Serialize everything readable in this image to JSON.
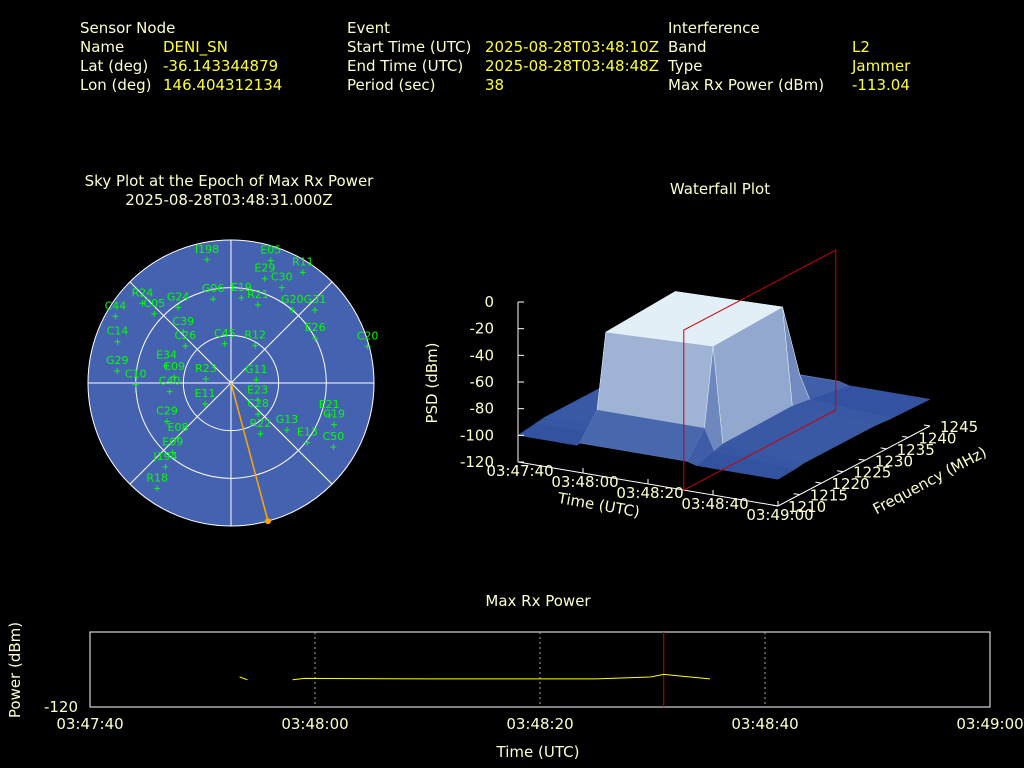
{
  "header": {
    "sensor": {
      "title": "Sensor Node",
      "rows": [
        [
          "Name",
          "DENI_SN"
        ],
        [
          "Lat (deg)",
          "-36.143344879"
        ],
        [
          "Lon (deg)",
          "146.404312134"
        ]
      ]
    },
    "event": {
      "title": "Event",
      "rows": [
        [
          "Start Time (UTC)",
          "2025-08-28T03:48:10Z"
        ],
        [
          "End Time (UTC)",
          "2025-08-28T03:48:48Z"
        ],
        [
          "Period (sec)",
          "38"
        ]
      ]
    },
    "interference": {
      "title": "Interference",
      "rows": [
        [
          "Band",
          "L2"
        ],
        [
          "Type",
          "Jammer"
        ],
        [
          "Max Rx Power (dBm)",
          "-113.04"
        ]
      ]
    }
  },
  "chart_data": [
    {
      "type": "polar",
      "title": "Sky Plot at the Epoch of Max Rx Power",
      "subtitle": "2025-08-28T03:48:31.000Z",
      "elevation_lim": [
        0,
        90
      ],
      "elevation_rings": [
        30,
        60
      ],
      "azimuth_spokes": [
        0,
        45,
        90,
        135,
        180,
        225,
        270,
        315
      ],
      "disk_color": "#4462b0",
      "color": "#00ff00",
      "jammer_azimuth": 165,
      "jammer_color": "#ffa500",
      "satellites": {
        "names": [
          "I198",
          "E05",
          "E29",
          "R11",
          "C30",
          "E19",
          "G06",
          "R21",
          "G20",
          "G31",
          "R24",
          "C44",
          "C05",
          "G24",
          "E26",
          "C20",
          "C39",
          "C26",
          "C45",
          "R12",
          "C14",
          "G29",
          "C10",
          "C09",
          "E34",
          "C40",
          "R23",
          "G11",
          "E23",
          "C28",
          "E11",
          "C29",
          "E08",
          "E09",
          "J194",
          "R18",
          "R22",
          "G13",
          "E13",
          "E21",
          "C19",
          "C50"
        ],
        "azimuth": [
          349,
          18,
          18,
          33,
          28,
          7,
          348,
          19,
          40,
          49,
          312,
          300,
          312,
          325,
          62,
          75,
          317,
          309,
          351,
          33,
          290,
          276,
          269,
          276,
          285,
          262,
          279,
          83,
          123,
          139,
          231,
          239,
          224,
          220,
          218,
          215,
          150,
          130,
          128,
          108,
          112,
          122
        ],
        "elevation": [
          11,
          9,
          21,
          7,
          22,
          36,
          36,
          38,
          30,
          20,
          15,
          6,
          25,
          32,
          30,
          1,
          46,
          53,
          65,
          62,
          14,
          18,
          30,
          54,
          48,
          51,
          74,
          74,
          70,
          64,
          69,
          43,
          42,
          33,
          23,
          9,
          53,
          44,
          29,
          25,
          20,
          14
        ]
      }
    },
    {
      "type": "surface3d",
      "title": "Waterfall Plot",
      "xlabel": "Time (UTC)",
      "ylabel": "Frequency (MHz)",
      "zlabel": "PSD (dBm)",
      "xlim": [
        0,
        80
      ],
      "ylim": [
        1210,
        1245
      ],
      "zlim": [
        -120,
        0
      ],
      "xticks": [
        {
          "value": 0,
          "label": "03:47:40"
        },
        {
          "value": 20,
          "label": "03:48:00"
        },
        {
          "value": 40,
          "label": "03:48:20"
        },
        {
          "value": 60,
          "label": "03:48:40"
        },
        {
          "value": 80,
          "label": "03:49:00"
        }
      ],
      "yticks": [
        1210,
        1215,
        1220,
        1225,
        1230,
        1235,
        1240,
        1245
      ],
      "zticks": [
        0,
        -20,
        -40,
        -60,
        -80,
        -100,
        -120
      ],
      "marker_x": 51,
      "marker_color": "#cc0000",
      "x": [
        0,
        18,
        19,
        52,
        55,
        80
      ],
      "y": [
        1210,
        1214,
        1216,
        1232,
        1236,
        1245
      ],
      "z": [
        [
          -100,
          -98,
          -97,
          -97,
          -98,
          -100
        ],
        [
          -100,
          -97,
          -95,
          -94,
          -96,
          -100
        ],
        [
          -98,
          -80,
          -25,
          -22,
          -78,
          -98
        ],
        [
          -98,
          -80,
          -22,
          -20,
          -78,
          -98
        ],
        [
          -100,
          -96,
          -94,
          -93,
          -95,
          -100
        ],
        [
          -100,
          -99,
          -98,
          -98,
          -99,
          -100
        ]
      ]
    },
    {
      "type": "line",
      "title": "Max Rx Power",
      "xlabel": "Time (UTC)",
      "ylabel": "Power (dBm)",
      "xlim": [
        0,
        80
      ],
      "ylim": [
        -120,
        -104
      ],
      "grid": true,
      "xticks": [
        {
          "value": 0,
          "label": "03:47:40"
        },
        {
          "value": 20,
          "label": "03:48:00"
        },
        {
          "value": 40,
          "label": "03:48:20"
        },
        {
          "value": 60,
          "label": "03:48:40"
        },
        {
          "value": 80,
          "label": "03:49:00"
        }
      ],
      "yticks": [
        -120
      ],
      "marker_x": 51,
      "marker_color": "#cc0000",
      "series": [
        {
          "name": "Max Rx Power",
          "color": "#ffff00",
          "x": [
            13.3,
            14.0,
            16,
            18.0,
            19.1,
            30,
            45,
            49.8,
            51.0,
            52.9,
            55.1
          ],
          "values": [
            -113.6,
            -114.2,
            null,
            -114.2,
            -113.9,
            -114.0,
            -114.0,
            -113.6,
            -113.04,
            -113.5,
            -114.0
          ]
        }
      ]
    }
  ]
}
